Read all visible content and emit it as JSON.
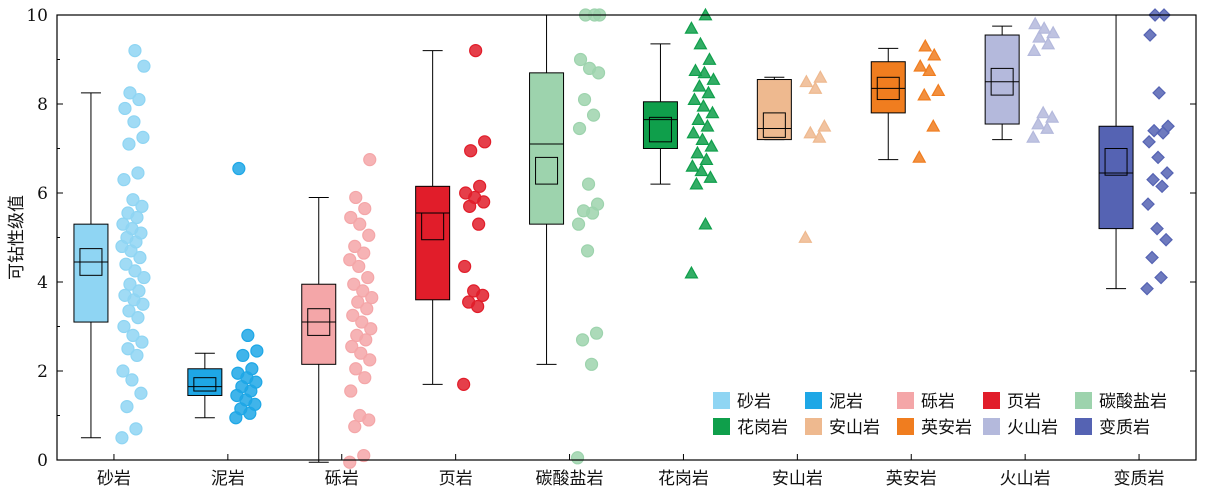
{
  "chart_data": {
    "type": "box",
    "ylabel": "可钻性级值",
    "ylim": [
      0,
      10
    ],
    "yticks": [
      0,
      2,
      4,
      6,
      8,
      10
    ],
    "categories": [
      "砂岩",
      "泥岩",
      "砾岩",
      "页岩",
      "碳酸盐岩",
      "花岗岩",
      "安山岩",
      "英安岩",
      "火山岩",
      "变质岩"
    ],
    "legend_position": "bottom-right",
    "groups": [
      {
        "name": "砂岩",
        "color": "#8fd5f3",
        "marker": "circle",
        "whisker_low": 0.5,
        "q1": 3.1,
        "median": 4.45,
        "q3": 5.3,
        "whisker_high": 8.25,
        "mean": 4.45,
        "mean_box": [
          4.15,
          4.75
        ],
        "points": [
          0.5,
          0.7,
          1.2,
          1.5,
          1.8,
          2.0,
          2.35,
          2.5,
          2.65,
          2.8,
          3.0,
          3.2,
          3.35,
          3.5,
          3.6,
          3.7,
          3.8,
          3.95,
          4.1,
          4.25,
          4.4,
          4.55,
          4.7,
          4.8,
          4.9,
          5.0,
          5.1,
          5.2,
          5.3,
          5.45,
          5.55,
          5.7,
          5.85,
          6.3,
          6.45,
          7.1,
          7.25,
          7.6,
          7.9,
          8.1,
          8.25,
          8.85,
          9.2
        ]
      },
      {
        "name": "泥岩",
        "color": "#1ea7e6",
        "marker": "circle",
        "whisker_low": 0.95,
        "q1": 1.45,
        "median": 1.65,
        "q3": 2.05,
        "whisker_high": 2.4,
        "mean": 1.68,
        "mean_box": [
          1.55,
          1.85
        ],
        "points": [
          0.95,
          1.05,
          1.15,
          1.25,
          1.35,
          1.45,
          1.55,
          1.65,
          1.75,
          1.85,
          1.95,
          2.05,
          2.35,
          2.45,
          2.8,
          6.55
        ]
      },
      {
        "name": "砾岩",
        "color": "#f4a6a8",
        "marker": "circle",
        "whisker_low": -0.05,
        "q1": 2.15,
        "median": 3.1,
        "q3": 3.95,
        "whisker_high": 5.9,
        "mean": 3.1,
        "mean_box": [
          2.8,
          3.4
        ],
        "points": [
          -0.05,
          0.1,
          0.75,
          0.9,
          1.0,
          1.55,
          1.85,
          2.05,
          2.25,
          2.4,
          2.55,
          2.7,
          2.8,
          2.95,
          3.1,
          3.25,
          3.4,
          3.55,
          3.65,
          3.8,
          3.95,
          4.1,
          4.35,
          4.5,
          4.65,
          4.8,
          5.05,
          5.3,
          5.45,
          5.65,
          5.9,
          6.75
        ]
      },
      {
        "name": "页岩",
        "color": "#e11d2a",
        "marker": "circle",
        "whisker_low": 1.7,
        "q1": 3.6,
        "median": 5.55,
        "q3": 6.15,
        "whisker_high": 9.2,
        "mean": 5.25,
        "mean_box": [
          4.95,
          5.55
        ],
        "points": [
          1.7,
          3.45,
          3.55,
          3.7,
          3.8,
          4.35,
          5.3,
          5.7,
          5.8,
          5.9,
          6.0,
          6.15,
          6.95,
          7.15,
          9.2
        ]
      },
      {
        "name": "碳酸盐岩",
        "color": "#9dd3ad",
        "marker": "circle",
        "whisker_low": 2.15,
        "q1": 5.3,
        "median": 7.1,
        "q3": 8.7,
        "whisker_high": 10.0,
        "mean": 6.5,
        "mean_box": [
          6.2,
          6.8
        ],
        "points": [
          0.05,
          2.15,
          2.7,
          2.85,
          4.7,
          5.3,
          5.55,
          5.6,
          5.75,
          6.2,
          7.45,
          7.75,
          8.1,
          8.7,
          8.8,
          9.0,
          10.0,
          10.0,
          10.0
        ]
      },
      {
        "name": "花岗岩",
        "color": "#0f9f4b",
        "marker": "triangle",
        "whisker_low": 6.2,
        "q1": 7.0,
        "median": 7.65,
        "q3": 8.05,
        "whisker_high": 9.35,
        "mean": 7.4,
        "mean_box": [
          7.15,
          7.7
        ],
        "points": [
          4.2,
          5.3,
          6.2,
          6.35,
          6.5,
          6.6,
          6.75,
          6.9,
          7.05,
          7.2,
          7.35,
          7.5,
          7.65,
          7.8,
          7.95,
          8.1,
          8.25,
          8.4,
          8.55,
          8.7,
          8.75,
          9.0,
          9.35,
          9.7,
          10.0
        ]
      },
      {
        "name": "安山岩",
        "color": "#eeb98f",
        "marker": "triangle",
        "whisker_low": 7.2,
        "q1": 7.2,
        "median": 7.45,
        "q3": 8.55,
        "whisker_high": 8.6,
        "mean": 7.55,
        "mean_box": [
          7.25,
          7.8
        ],
        "points": [
          5.0,
          7.25,
          7.35,
          7.5,
          8.35,
          8.5,
          8.6
        ]
      },
      {
        "name": "英安岩",
        "color": "#f07d1f",
        "marker": "triangle",
        "whisker_low": 6.75,
        "q1": 7.8,
        "median": 8.35,
        "q3": 8.95,
        "whisker_high": 9.25,
        "mean": 8.35,
        "mean_box": [
          8.1,
          8.6
        ],
        "points": [
          6.8,
          7.5,
          8.2,
          8.3,
          8.75,
          8.85,
          9.1,
          9.3
        ]
      },
      {
        "name": "火山岩",
        "color": "#b4b9dc",
        "marker": "triangle",
        "whisker_low": 7.2,
        "q1": 7.55,
        "median": 8.5,
        "q3": 9.55,
        "whisker_high": 9.75,
        "mean": 8.5,
        "mean_box": [
          8.2,
          8.8
        ],
        "points": [
          7.25,
          7.45,
          7.55,
          7.7,
          7.8,
          9.2,
          9.35,
          9.5,
          9.6,
          9.7,
          9.8
        ]
      },
      {
        "name": "变质岩",
        "color": "#5563b3",
        "marker": "diamond",
        "whisker_low": 3.85,
        "q1": 5.2,
        "median": 6.45,
        "q3": 7.5,
        "whisker_high": 10.0,
        "mean": 6.7,
        "mean_box": [
          6.4,
          7.0
        ],
        "points": [
          3.85,
          4.1,
          4.55,
          4.95,
          5.2,
          5.75,
          6.15,
          6.3,
          6.45,
          6.8,
          7.15,
          7.35,
          7.4,
          7.5,
          8.25,
          9.55,
          10.0,
          10.0
        ]
      }
    ]
  }
}
